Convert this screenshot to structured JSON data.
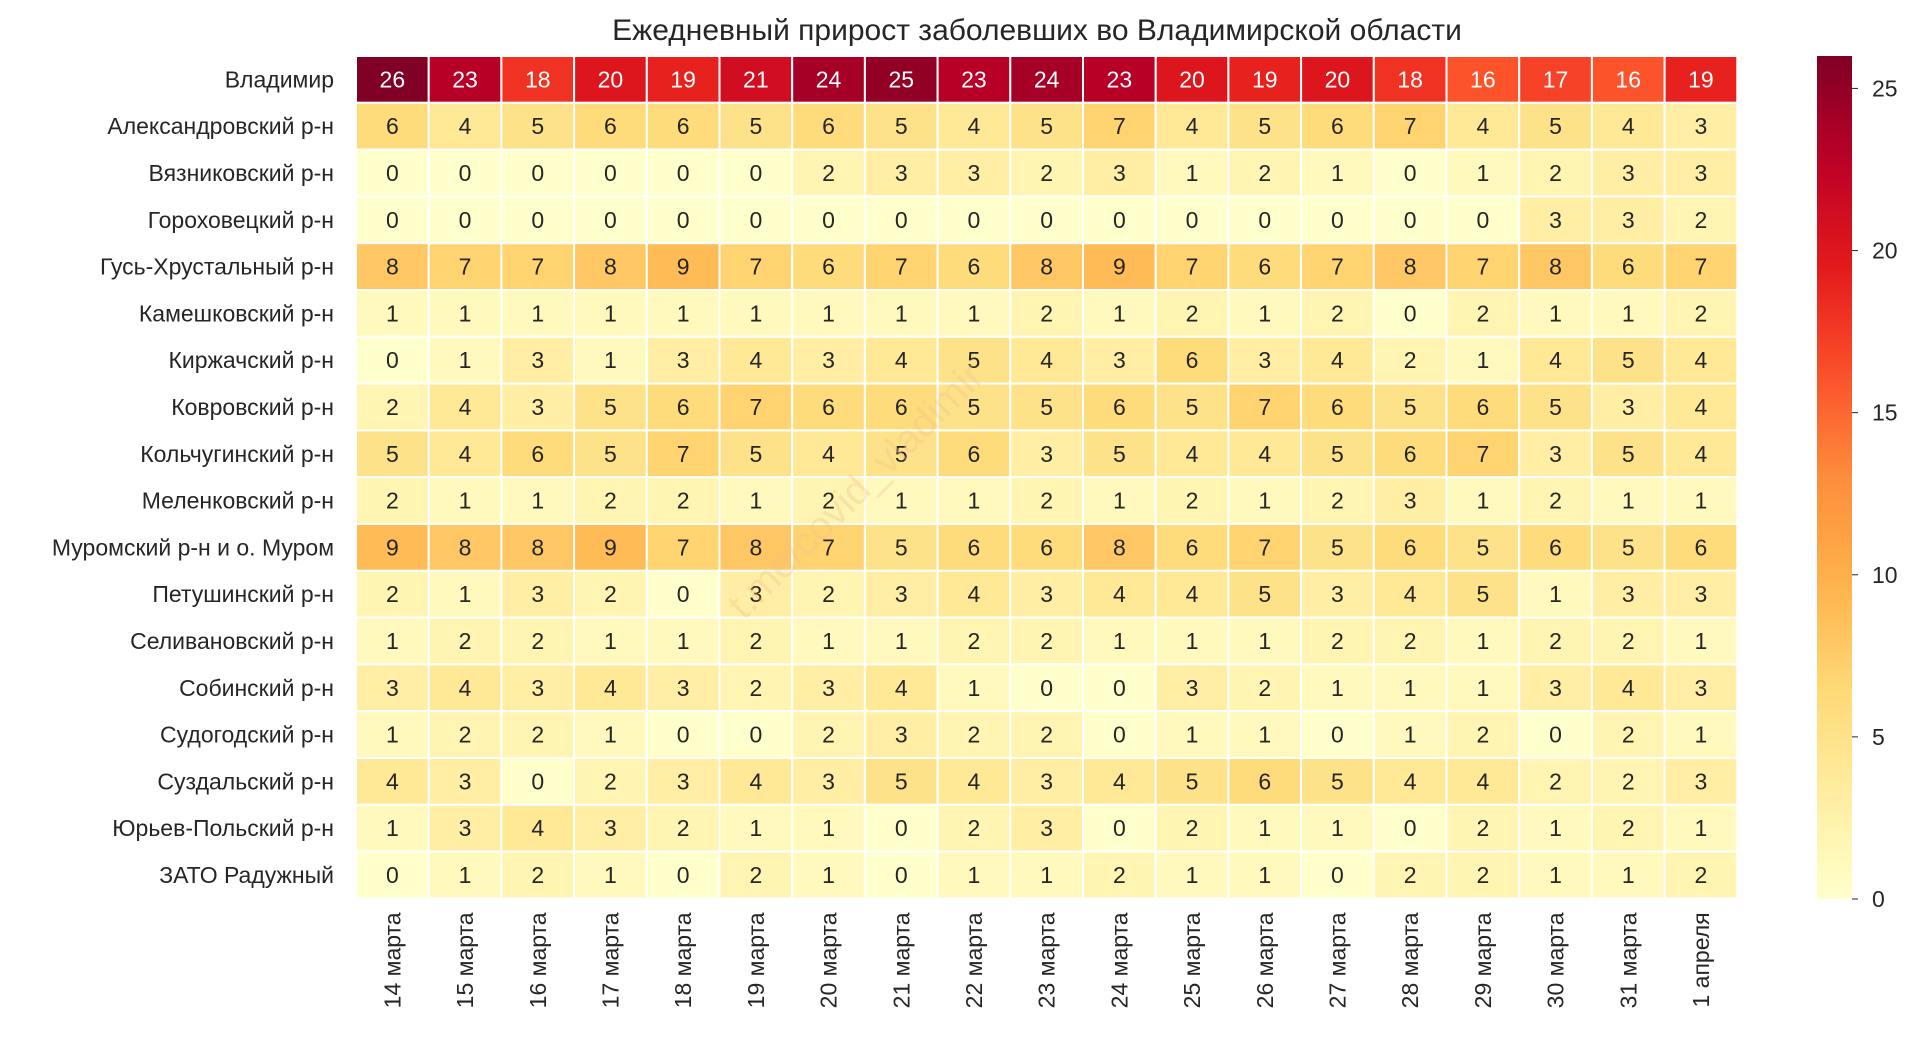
{
  "chart_data": {
    "type": "heatmap",
    "title": "Ежедневный прирост заболевших во Владимирской области",
    "watermark": "t.me/covid_vladimir",
    "rows": [
      "Владимир",
      "Александровский р-н",
      "Вязниковский р-н",
      "Гороховецкий р-н",
      "Гусь-Хрустальный р-н",
      "Камешковский р-н",
      "Киржачский р-н",
      "Ковровский р-н",
      "Кольчугинский р-н",
      "Меленковский р-н",
      "Муромский р-н и о. Муром",
      "Петушинский р-н",
      "Селивановский р-н",
      "Собинский р-н",
      "Судогодский р-н",
      "Суздальский р-н",
      "Юрьев-Польский р-н",
      "ЗАТО Радужный"
    ],
    "columns": [
      "14 марта",
      "15 марта",
      "16 марта",
      "17 марта",
      "18 марта",
      "19 марта",
      "20 марта",
      "21 марта",
      "22 марта",
      "23 марта",
      "24 марта",
      "25 марта",
      "26 марта",
      "27 марта",
      "28 марта",
      "29 марта",
      "30 марта",
      "31 марта",
      "1 апреля"
    ],
    "values": [
      [
        26,
        23,
        18,
        20,
        19,
        21,
        24,
        25,
        23,
        24,
        23,
        20,
        19,
        20,
        18,
        16,
        17,
        16,
        19
      ],
      [
        6,
        4,
        5,
        6,
        6,
        5,
        6,
        5,
        4,
        5,
        7,
        4,
        5,
        6,
        7,
        4,
        5,
        4,
        3
      ],
      [
        0,
        0,
        0,
        0,
        0,
        0,
        2,
        3,
        3,
        2,
        3,
        1,
        2,
        1,
        0,
        1,
        2,
        3,
        3
      ],
      [
        0,
        0,
        0,
        0,
        0,
        0,
        0,
        0,
        0,
        0,
        0,
        0,
        0,
        0,
        0,
        0,
        3,
        3,
        2
      ],
      [
        8,
        7,
        7,
        8,
        9,
        7,
        6,
        7,
        6,
        8,
        9,
        7,
        6,
        7,
        8,
        7,
        8,
        6,
        7
      ],
      [
        1,
        1,
        1,
        1,
        1,
        1,
        1,
        1,
        1,
        2,
        1,
        2,
        1,
        2,
        0,
        2,
        1,
        1,
        2
      ],
      [
        0,
        1,
        3,
        1,
        3,
        4,
        3,
        4,
        5,
        4,
        3,
        6,
        3,
        4,
        2,
        1,
        4,
        5,
        4
      ],
      [
        2,
        4,
        3,
        5,
        6,
        7,
        6,
        6,
        5,
        5,
        6,
        5,
        7,
        6,
        5,
        6,
        5,
        3,
        4
      ],
      [
        5,
        4,
        6,
        5,
        7,
        5,
        4,
        5,
        6,
        3,
        5,
        4,
        4,
        5,
        6,
        7,
        3,
        5,
        4
      ],
      [
        2,
        1,
        1,
        2,
        2,
        1,
        2,
        1,
        1,
        2,
        1,
        2,
        1,
        2,
        3,
        1,
        2,
        1,
        1
      ],
      [
        9,
        8,
        8,
        9,
        7,
        8,
        7,
        5,
        6,
        6,
        8,
        6,
        7,
        5,
        6,
        5,
        6,
        5,
        6
      ],
      [
        2,
        1,
        3,
        2,
        0,
        3,
        2,
        3,
        4,
        3,
        4,
        4,
        5,
        3,
        4,
        5,
        1,
        3,
        3
      ],
      [
        1,
        2,
        2,
        1,
        1,
        2,
        1,
        1,
        2,
        2,
        1,
        1,
        1,
        2,
        2,
        1,
        2,
        2,
        1
      ],
      [
        3,
        4,
        3,
        4,
        3,
        2,
        3,
        4,
        1,
        0,
        0,
        3,
        2,
        1,
        1,
        1,
        3,
        4,
        3
      ],
      [
        1,
        2,
        2,
        1,
        0,
        0,
        2,
        3,
        2,
        2,
        0,
        1,
        1,
        0,
        1,
        2,
        0,
        2,
        1
      ],
      [
        4,
        3,
        0,
        2,
        3,
        4,
        3,
        5,
        4,
        3,
        4,
        5,
        6,
        5,
        4,
        4,
        2,
        2,
        3
      ],
      [
        1,
        3,
        4,
        3,
        2,
        1,
        1,
        0,
        2,
        3,
        0,
        2,
        1,
        1,
        0,
        2,
        1,
        2,
        1
      ],
      [
        0,
        1,
        2,
        1,
        0,
        2,
        1,
        0,
        1,
        1,
        2,
        1,
        1,
        0,
        2,
        2,
        1,
        1,
        2
      ]
    ],
    "vmin": 0,
    "vmax": 26,
    "colormap": "YlOrRd",
    "colorbar_ticks": [
      0,
      5,
      10,
      15,
      20,
      25
    ],
    "cell_border_color": "#ffffff"
  }
}
